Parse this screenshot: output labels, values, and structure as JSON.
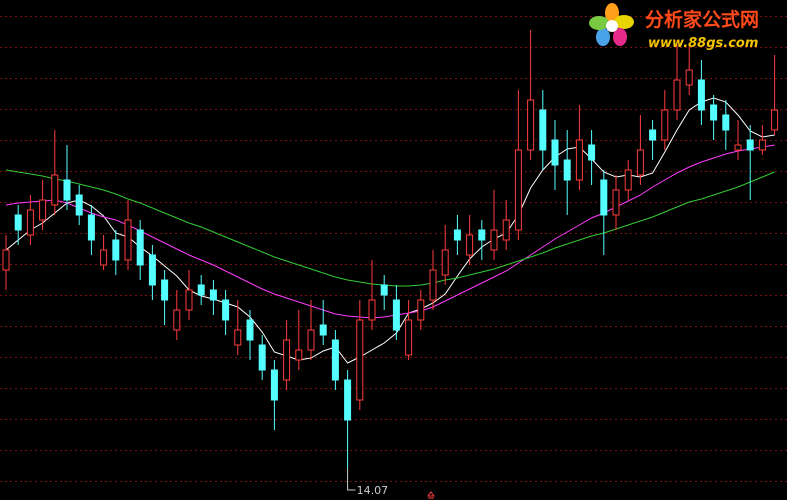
{
  "chart_data": {
    "type": "candlestick",
    "ylim": [
      13.75,
      18.75
    ],
    "up_color": "#ff3c3c",
    "down_color": "#54ffff",
    "open": [
      16.05,
      16.6,
      16.4,
      16.55,
      16.7,
      16.95,
      16.8,
      16.6,
      16.1,
      16.35,
      16.15,
      16.45,
      16.2,
      15.95,
      15.45,
      15.65,
      15.9,
      15.85,
      15.75,
      15.3,
      15.55,
      15.3,
      15.05,
      14.95,
      15.15,
      15.25,
      15.5,
      15.35,
      14.95,
      14.75,
      15.55,
      15.9,
      15.75,
      15.2,
      15.55,
      15.75,
      16.0,
      16.45,
      16.2,
      16.45,
      16.25,
      16.35,
      16.45,
      17.25,
      17.65,
      17.35,
      17.15,
      16.95,
      17.3,
      16.95,
      16.6,
      16.85,
      17.0,
      17.45,
      17.35,
      17.65,
      17.9,
      17.95,
      17.7,
      17.6,
      17.25,
      17.35,
      17.25,
      17.45
    ],
    "high": [
      16.4,
      16.7,
      16.8,
      16.95,
      17.45,
      17.3,
      16.9,
      16.7,
      16.4,
      16.45,
      16.75,
      16.55,
      16.3,
      16.05,
      15.85,
      16.05,
      16.0,
      15.95,
      15.85,
      15.75,
      15.65,
      15.4,
      15.15,
      15.55,
      15.65,
      15.75,
      15.75,
      15.45,
      15.05,
      15.75,
      16.15,
      16.0,
      15.9,
      15.75,
      15.85,
      16.25,
      16.5,
      16.6,
      16.6,
      16.55,
      16.85,
      16.75,
      17.85,
      18.45,
      17.85,
      17.55,
      17.45,
      17.7,
      17.45,
      17.05,
      17.0,
      17.15,
      17.6,
      17.55,
      17.85,
      18.35,
      18.3,
      18.15,
      17.8,
      17.75,
      17.55,
      17.5,
      17.5,
      18.2
    ],
    "low": [
      15.85,
      16.3,
      16.3,
      16.45,
      16.6,
      16.65,
      16.5,
      16.2,
      16.05,
      16.0,
      16.05,
      15.95,
      15.75,
      15.5,
      15.35,
      15.55,
      15.7,
      15.6,
      15.4,
      15.2,
      15.15,
      14.95,
      14.45,
      14.85,
      15.05,
      15.15,
      15.3,
      14.85,
      14.07,
      14.65,
      15.45,
      15.65,
      15.35,
      15.15,
      15.45,
      15.65,
      15.9,
      16.2,
      16.1,
      16.15,
      16.15,
      16.25,
      16.35,
      17.15,
      17.05,
      16.85,
      16.6,
      16.85,
      16.9,
      16.2,
      16.45,
      16.75,
      16.9,
      17.15,
      17.25,
      17.55,
      17.8,
      17.5,
      17.35,
      17.25,
      17.15,
      16.75,
      17.2,
      17.4
    ],
    "close": [
      16.25,
      16.45,
      16.65,
      16.75,
      17.0,
      16.75,
      16.6,
      16.35,
      16.25,
      16.15,
      16.55,
      16.1,
      15.9,
      15.75,
      15.65,
      15.85,
      15.8,
      15.75,
      15.55,
      15.45,
      15.35,
      15.05,
      14.75,
      15.35,
      15.25,
      15.45,
      15.4,
      14.95,
      14.55,
      15.55,
      15.75,
      15.8,
      15.45,
      15.55,
      15.75,
      16.05,
      16.25,
      16.35,
      16.4,
      16.35,
      16.45,
      16.55,
      17.25,
      17.75,
      17.25,
      17.1,
      16.95,
      17.35,
      17.15,
      16.6,
      16.85,
      17.05,
      17.25,
      17.35,
      17.65,
      17.95,
      18.05,
      17.65,
      17.55,
      17.45,
      17.3,
      17.25,
      17.35,
      17.65
    ],
    "lines": [
      {
        "color": "#ffffff",
        "values": [
          16.25,
          16.35,
          16.45,
          16.52,
          16.62,
          16.72,
          16.75,
          16.69,
          16.59,
          16.42,
          16.38,
          16.28,
          16.19,
          16.09,
          15.99,
          15.85,
          15.79,
          15.76,
          15.72,
          15.68,
          15.58,
          15.43,
          15.23,
          15.19,
          15.15,
          15.17,
          15.24,
          15.28,
          15.12,
          15.18,
          15.25,
          15.32,
          15.42,
          15.62,
          15.66,
          15.72,
          15.81,
          15.99,
          16.16,
          16.28,
          16.36,
          16.42,
          16.6,
          16.87,
          17.05,
          17.18,
          17.26,
          17.28,
          17.16,
          17.03,
          16.98,
          17.0,
          16.98,
          17.02,
          17.23,
          17.45,
          17.65,
          17.73,
          17.77,
          17.73,
          17.6,
          17.44,
          17.38,
          17.4
        ]
      },
      {
        "color": "#ff3cff",
        "values": [
          16.7,
          16.72,
          16.73,
          16.74,
          16.75,
          16.72,
          16.67,
          16.62,
          16.58,
          16.55,
          16.5,
          16.44,
          16.38,
          16.32,
          16.26,
          16.2,
          16.15,
          16.1,
          16.04,
          15.98,
          15.92,
          15.86,
          15.81,
          15.77,
          15.73,
          15.69,
          15.65,
          15.61,
          15.59,
          15.58,
          15.57,
          15.58,
          15.6,
          15.62,
          15.64,
          15.68,
          15.74,
          15.8,
          15.86,
          15.92,
          15.98,
          16.04,
          16.12,
          16.2,
          16.28,
          16.36,
          16.43,
          16.5,
          16.57,
          16.62,
          16.68,
          16.74,
          16.8,
          16.88,
          16.95,
          17.02,
          17.08,
          17.13,
          17.17,
          17.21,
          17.24,
          17.26,
          17.28,
          17.3
        ]
      },
      {
        "color": "#33cc33",
        "values": [
          17.05,
          17.03,
          17.01,
          16.99,
          16.96,
          16.94,
          16.91,
          16.88,
          16.85,
          16.81,
          16.76,
          16.72,
          16.67,
          16.62,
          16.57,
          16.52,
          16.48,
          16.43,
          16.38,
          16.33,
          16.28,
          16.23,
          16.18,
          16.14,
          16.1,
          16.06,
          16.02,
          15.98,
          15.95,
          15.93,
          15.91,
          15.9,
          15.89,
          15.89,
          15.9,
          15.92,
          15.95,
          15.97,
          16.0,
          16.03,
          16.06,
          16.1,
          16.14,
          16.18,
          16.22,
          16.27,
          16.31,
          16.35,
          16.39,
          16.42,
          16.46,
          16.5,
          16.54,
          16.58,
          16.63,
          16.68,
          16.73,
          16.76,
          16.8,
          16.84,
          16.88,
          16.93,
          16.98,
          17.03
        ]
      }
    ]
  },
  "watermark": {
    "title": "分析家公式网",
    "url": "www.88gs.com"
  }
}
